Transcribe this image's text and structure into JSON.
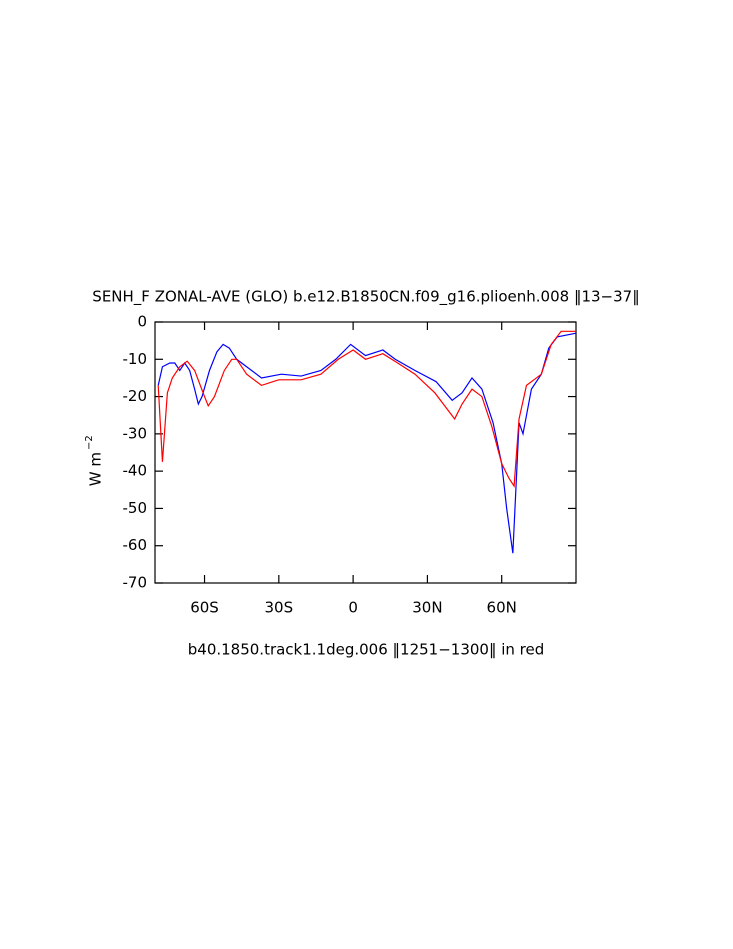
{
  "chart_data": {
    "type": "line",
    "title": "SENH_F ZONAL-AVE (GLO) b.e12.B1850CN.f09_g16.plioenh.008 ‖13−37‖",
    "y_label": "W m",
    "y_label_sup": "−2",
    "subtitle": "b40.1850.track1.1deg.006 ‖1251−1300‖ in red",
    "xlim": [
      -80,
      90
    ],
    "ylim": [
      -70,
      0
    ],
    "xticks": [
      {
        "value": -60,
        "label": "60S"
      },
      {
        "value": -30,
        "label": "30S"
      },
      0,
      {
        "value": 30,
        "label": "30N"
      },
      {
        "value": 60,
        "label": "60N"
      }
    ],
    "yticks": [
      0,
      -10,
      -20,
      -30,
      -40,
      -50,
      -60,
      -70
    ],
    "series": [
      {
        "color": "#0000ff",
        "x": [
          -78.7,
          -77,
          -74,
          -72,
          -70,
          -68,
          -66,
          -64,
          -62.5,
          -61,
          -58,
          -55,
          -52.5,
          -50,
          -47,
          -43,
          -37,
          -29,
          -21,
          -13,
          -7,
          -1,
          5,
          12,
          17,
          25,
          33.5,
          40,
          44,
          48,
          52,
          56.5,
          60,
          62,
          64.5,
          67,
          68.6,
          72,
          76,
          79,
          82.4,
          90
        ],
        "values": [
          -17,
          -12,
          -11,
          -11,
          -13,
          -11,
          -13,
          -18,
          -22,
          -20,
          -13,
          -8,
          -6,
          -7,
          -10,
          -12,
          -15,
          -14,
          -14.5,
          -13,
          -10,
          -6,
          -9,
          -7.5,
          -10,
          -13,
          -16,
          -21,
          -19,
          -15,
          -18,
          -27,
          -38,
          -50,
          -62,
          -27,
          -30,
          -18,
          -14,
          -7,
          -4,
          -3
        ]
      },
      {
        "color": "#ff0000",
        "x": [
          -78.7,
          -77,
          -75,
          -73,
          -70,
          -67,
          -64,
          -60,
          -58.5,
          -56,
          -52,
          -49,
          -47,
          -43,
          -37,
          -30,
          -21,
          -13,
          -6,
          0,
          5,
          12,
          18,
          25,
          33,
          41,
          44,
          48,
          52,
          56,
          60,
          63,
          65,
          67,
          70,
          74,
          76,
          80,
          84,
          90
        ],
        "values": [
          -17,
          -37.5,
          -19,
          -15,
          -12,
          -10.5,
          -13,
          -20,
          -22.5,
          -20,
          -13,
          -10,
          -10,
          -14,
          -17,
          -15.5,
          -15.5,
          -14,
          -10,
          -7.5,
          -10,
          -8.5,
          -11,
          -14,
          -19,
          -26,
          -22,
          -18,
          -20,
          -28,
          -38,
          -42,
          -44,
          -26,
          -17,
          -15,
          -14,
          -6,
          -2.5,
          -2.5
        ]
      }
    ]
  }
}
